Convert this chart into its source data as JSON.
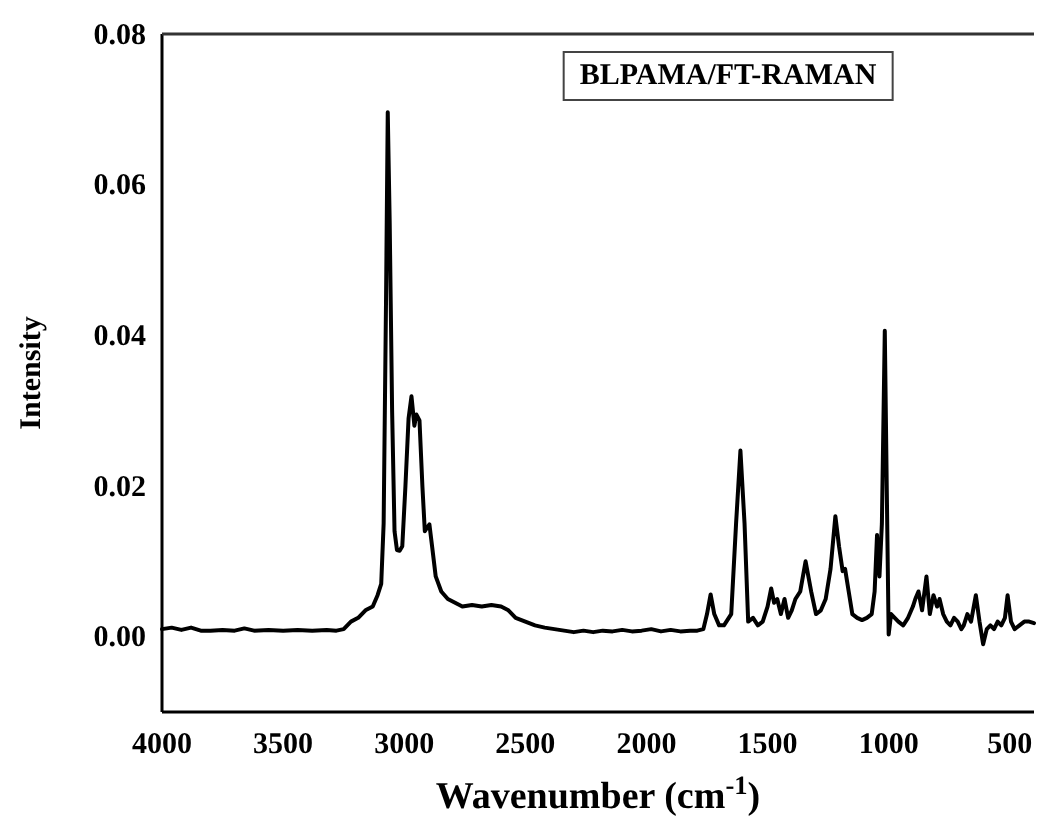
{
  "chart_data": {
    "type": "line",
    "xlabel": "Wavenumber (cm$^{-1}$)",
    "ylabel": "Intensity",
    "annotations": [
      "BLPAMA/FT-RAMAN"
    ],
    "xlim": [
      4000,
      400
    ],
    "xticks": [
      4000,
      3500,
      3000,
      2500,
      2000,
      1500,
      1000,
      500
    ],
    "ylim": [
      -0.01,
      0.08
    ],
    "yticks": [
      {
        "value": 0,
        "label": "0.00"
      },
      {
        "value": 0.02,
        "label": "0.02"
      },
      {
        "value": 0.04,
        "label": "0.04"
      },
      {
        "value": 0.06,
        "label": "0.06"
      },
      {
        "value": 0.08,
        "label": "0.08"
      }
    ],
    "grid": false,
    "marker": "none",
    "line_style": "solid",
    "series": [
      {
        "color": "#000000",
        "x": [
          4000,
          3960,
          3920,
          3880,
          3840,
          3800,
          3750,
          3700,
          3660,
          3620,
          3560,
          3500,
          3440,
          3380,
          3320,
          3280,
          3250,
          3220,
          3190,
          3160,
          3130,
          3110,
          3095,
          3085,
          3075,
          3068,
          3060,
          3050,
          3040,
          3030,
          3019,
          3008,
          2995,
          2982,
          2970,
          2958,
          2950,
          2937,
          2925,
          2915,
          2905,
          2896,
          2885,
          2870,
          2847,
          2820,
          2790,
          2760,
          2720,
          2680,
          2640,
          2600,
          2570,
          2540,
          2500,
          2460,
          2420,
          2380,
          2340,
          2300,
          2260,
          2220,
          2180,
          2140,
          2100,
          2060,
          2020,
          1980,
          1940,
          1900,
          1860,
          1820,
          1790,
          1765,
          1750,
          1735,
          1720,
          1700,
          1680,
          1650,
          1630,
          1612,
          1595,
          1580,
          1560,
          1540,
          1520,
          1500,
          1485,
          1473,
          1460,
          1445,
          1430,
          1415,
          1400,
          1385,
          1365,
          1343,
          1320,
          1300,
          1280,
          1260,
          1240,
          1220,
          1205,
          1190,
          1180,
          1165,
          1150,
          1130,
          1110,
          1090,
          1070,
          1058,
          1048,
          1038,
          1028,
          1016,
          1008,
          1000,
          990,
          975,
          960,
          940,
          920,
          900,
          890,
          877,
          862,
          844,
          830,
          815,
          800,
          790,
          775,
          760,
          745,
          730,
          715,
          700,
          690,
          675,
          660,
          640,
          625,
          610,
          595,
          580,
          565,
          550,
          535,
          520,
          509,
          495,
          480,
          460,
          440,
          420,
          400
        ],
        "values": [
          0.001,
          0.0012,
          0.0009,
          0.0012,
          0.0008,
          0.0008,
          0.0009,
          0.0008,
          0.0011,
          0.0008,
          0.0009,
          0.0008,
          0.0009,
          0.0008,
          0.0009,
          0.0008,
          0.001,
          0.002,
          0.0025,
          0.0035,
          0.004,
          0.0055,
          0.007,
          0.015,
          0.045,
          0.0696,
          0.055,
          0.03,
          0.014,
          0.0115,
          0.0114,
          0.012,
          0.02,
          0.029,
          0.0319,
          0.028,
          0.0295,
          0.0287,
          0.02,
          0.014,
          0.0145,
          0.0149,
          0.012,
          0.008,
          0.006,
          0.005,
          0.0045,
          0.004,
          0.0042,
          0.004,
          0.0042,
          0.004,
          0.0035,
          0.0025,
          0.002,
          0.0015,
          0.0012,
          0.001,
          0.0008,
          0.0006,
          0.0008,
          0.0006,
          0.0008,
          0.0007,
          0.0009,
          0.0007,
          0.0008,
          0.001,
          0.0007,
          0.0009,
          0.0007,
          0.0008,
          0.0008,
          0.001,
          0.003,
          0.0056,
          0.003,
          0.0015,
          0.0015,
          0.003,
          0.015,
          0.0247,
          0.015,
          0.002,
          0.0025,
          0.0015,
          0.002,
          0.004,
          0.0064,
          0.0045,
          0.005,
          0.003,
          0.005,
          0.0025,
          0.0035,
          0.005,
          0.006,
          0.01,
          0.006,
          0.003,
          0.0035,
          0.005,
          0.009,
          0.016,
          0.012,
          0.0087,
          0.009,
          0.006,
          0.003,
          0.0025,
          0.0022,
          0.0025,
          0.003,
          0.006,
          0.0135,
          0.008,
          0.015,
          0.0406,
          0.02,
          0.0003,
          0.003,
          0.0025,
          0.002,
          0.0015,
          0.0025,
          0.004,
          0.005,
          0.006,
          0.0035,
          0.008,
          0.003,
          0.0055,
          0.004,
          0.005,
          0.003,
          0.002,
          0.0015,
          0.0025,
          0.002,
          0.001,
          0.0015,
          0.003,
          0.002,
          0.0055,
          0.002,
          -0.001,
          0.001,
          0.0015,
          0.001,
          0.002,
          0.0015,
          0.0025,
          0.0055,
          0.002,
          0.001,
          0.0015,
          0.002,
          0.002,
          0.0018
        ]
      }
    ]
  }
}
